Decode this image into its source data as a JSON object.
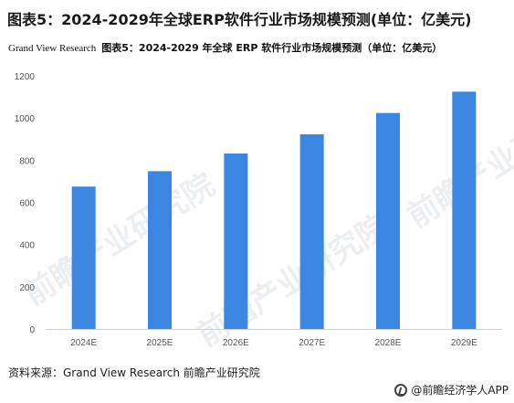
{
  "title": "图表5：2024-2029年全球ERP软件行业市场规模预测(单位：亿美元)",
  "subtitle_source": "Grand View Research",
  "subtitle_title": "图表5：2024-2029 年全球 ERP 软件行业市场规模预测（单位：亿美元）",
  "source_note": "资料来源：Grand View Research 前瞻产业研究院",
  "footer_app": "@前瞻经济学人APP",
  "watermark": "前瞻产业研究院",
  "colors": {
    "bar": "#3a86e0",
    "axis": "#d0d0d0"
  },
  "chart_data": {
    "type": "bar",
    "categories": [
      "2024E",
      "2025E",
      "2026E",
      "2027E",
      "2028E",
      "2029E"
    ],
    "values": [
      675,
      748,
      832,
      923,
      1024,
      1125
    ],
    "ylim": [
      0,
      1200
    ],
    "yticks": [
      0,
      200,
      400,
      600,
      800,
      1000,
      1200
    ],
    "grid": false,
    "legend": "none"
  }
}
